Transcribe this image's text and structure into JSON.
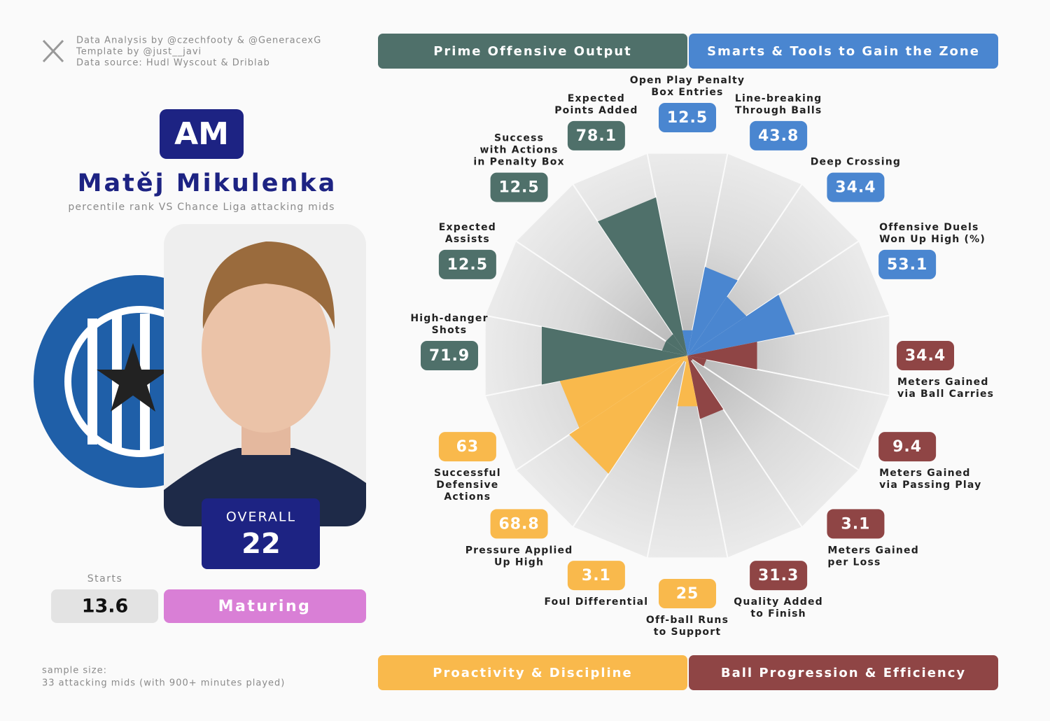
{
  "credits": [
    "Data Analysis by @czechfooty & @GeneracexG",
    "Template by @just__javi",
    "Data source: Hudl Wyscout & Driblab"
  ],
  "player": {
    "position": "AM",
    "name": "Matěj Mikulenka",
    "subtitle": "percentile rank VS Chance Liga attacking mids",
    "overall_label": "OVERALL",
    "overall": 22,
    "starts_label": "Starts",
    "starts": 13.6,
    "status": "Maturing"
  },
  "sample": [
    "sample size:",
    "33 attacking mids (with 900+ minutes played)"
  ],
  "chart_data": {
    "type": "pizza",
    "rlim": [
      0,
      100
    ],
    "series": [
      {
        "name": "Smarts & Tools to Gain the Zone",
        "color": "#4a86d0",
        "categories": [
          "Open Play Penalty\nBox Entries",
          "Line-breaking\nThrough Balls",
          "Deep Crossing",
          "Offensive Duels\nWon Up High (%)"
        ],
        "values": [
          12.5,
          43.8,
          34.4,
          53.1
        ]
      },
      {
        "name": "Ball Progression & Efficiency",
        "color": "#8f4545",
        "categories": [
          "Meters Gained\nvia Ball Carries",
          "Meters Gained\nvia Passing Play",
          "Meters Gained\nper Loss",
          "Quality Added\nto Finish"
        ],
        "values": [
          34.4,
          9.4,
          3.1,
          31.3
        ]
      },
      {
        "name": "Proactivity & Discipline",
        "color": "#f9b94c",
        "categories": [
          "Off-ball Runs\nto Support",
          "Foul Differential",
          "Pressure Applied\nUp High",
          "Successful\nDefensive\nActions"
        ],
        "values": [
          25,
          3.1,
          68.8,
          63
        ]
      },
      {
        "name": "Prime Offensive Output",
        "color": "#4f706a",
        "categories": [
          "High-danger\nShots",
          "Expected\nAssists",
          "Success\nwith Actions\nin Penalty Box",
          "Expected\nPoints Added"
        ],
        "values": [
          71.9,
          12.5,
          12.5,
          78.1
        ]
      }
    ]
  }
}
